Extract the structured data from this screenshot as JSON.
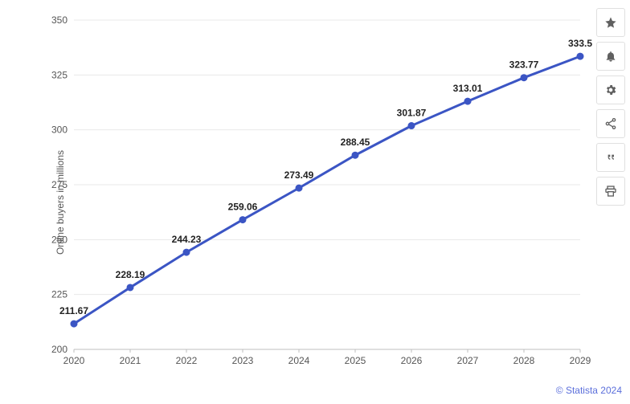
{
  "chart": {
    "type": "line",
    "ylabel": "Online buyers in millions",
    "ylabel_fontsize": 12,
    "x_categories": [
      "2020",
      "2021",
      "2022",
      "2023",
      "2024",
      "2025",
      "2026",
      "2027",
      "2028",
      "2029"
    ],
    "values": [
      211.67,
      228.19,
      244.23,
      259.06,
      273.49,
      288.45,
      301.87,
      313.01,
      323.77,
      333.5
    ],
    "point_labels": [
      "211.67",
      "228.19",
      "244.23",
      "259.06",
      "273.49",
      "288.45",
      "301.87",
      "313.01",
      "323.77",
      "333.5"
    ],
    "ylim": [
      200,
      350
    ],
    "ytick_step": 25,
    "yticks": [
      200,
      225,
      250,
      275,
      300,
      325,
      350
    ],
    "line_color": "#3b55c4",
    "line_width": 3,
    "marker_color": "#3b55c4",
    "marker_radius": 4.5,
    "grid_color": "#e8e8e8",
    "axis_color": "#bfbfbf",
    "background_color": "#ffffff",
    "tick_fontsize": 12,
    "label_color": "#222222",
    "tick_color": "#555555"
  },
  "sidebar": {
    "icons": [
      {
        "name": "star-icon"
      },
      {
        "name": "bell-icon"
      },
      {
        "name": "gear-icon"
      },
      {
        "name": "share-icon"
      },
      {
        "name": "quote-icon"
      },
      {
        "name": "print-icon"
      }
    ]
  },
  "attribution": {
    "text": "© Statista 2024",
    "color": "#5b6fdb"
  }
}
